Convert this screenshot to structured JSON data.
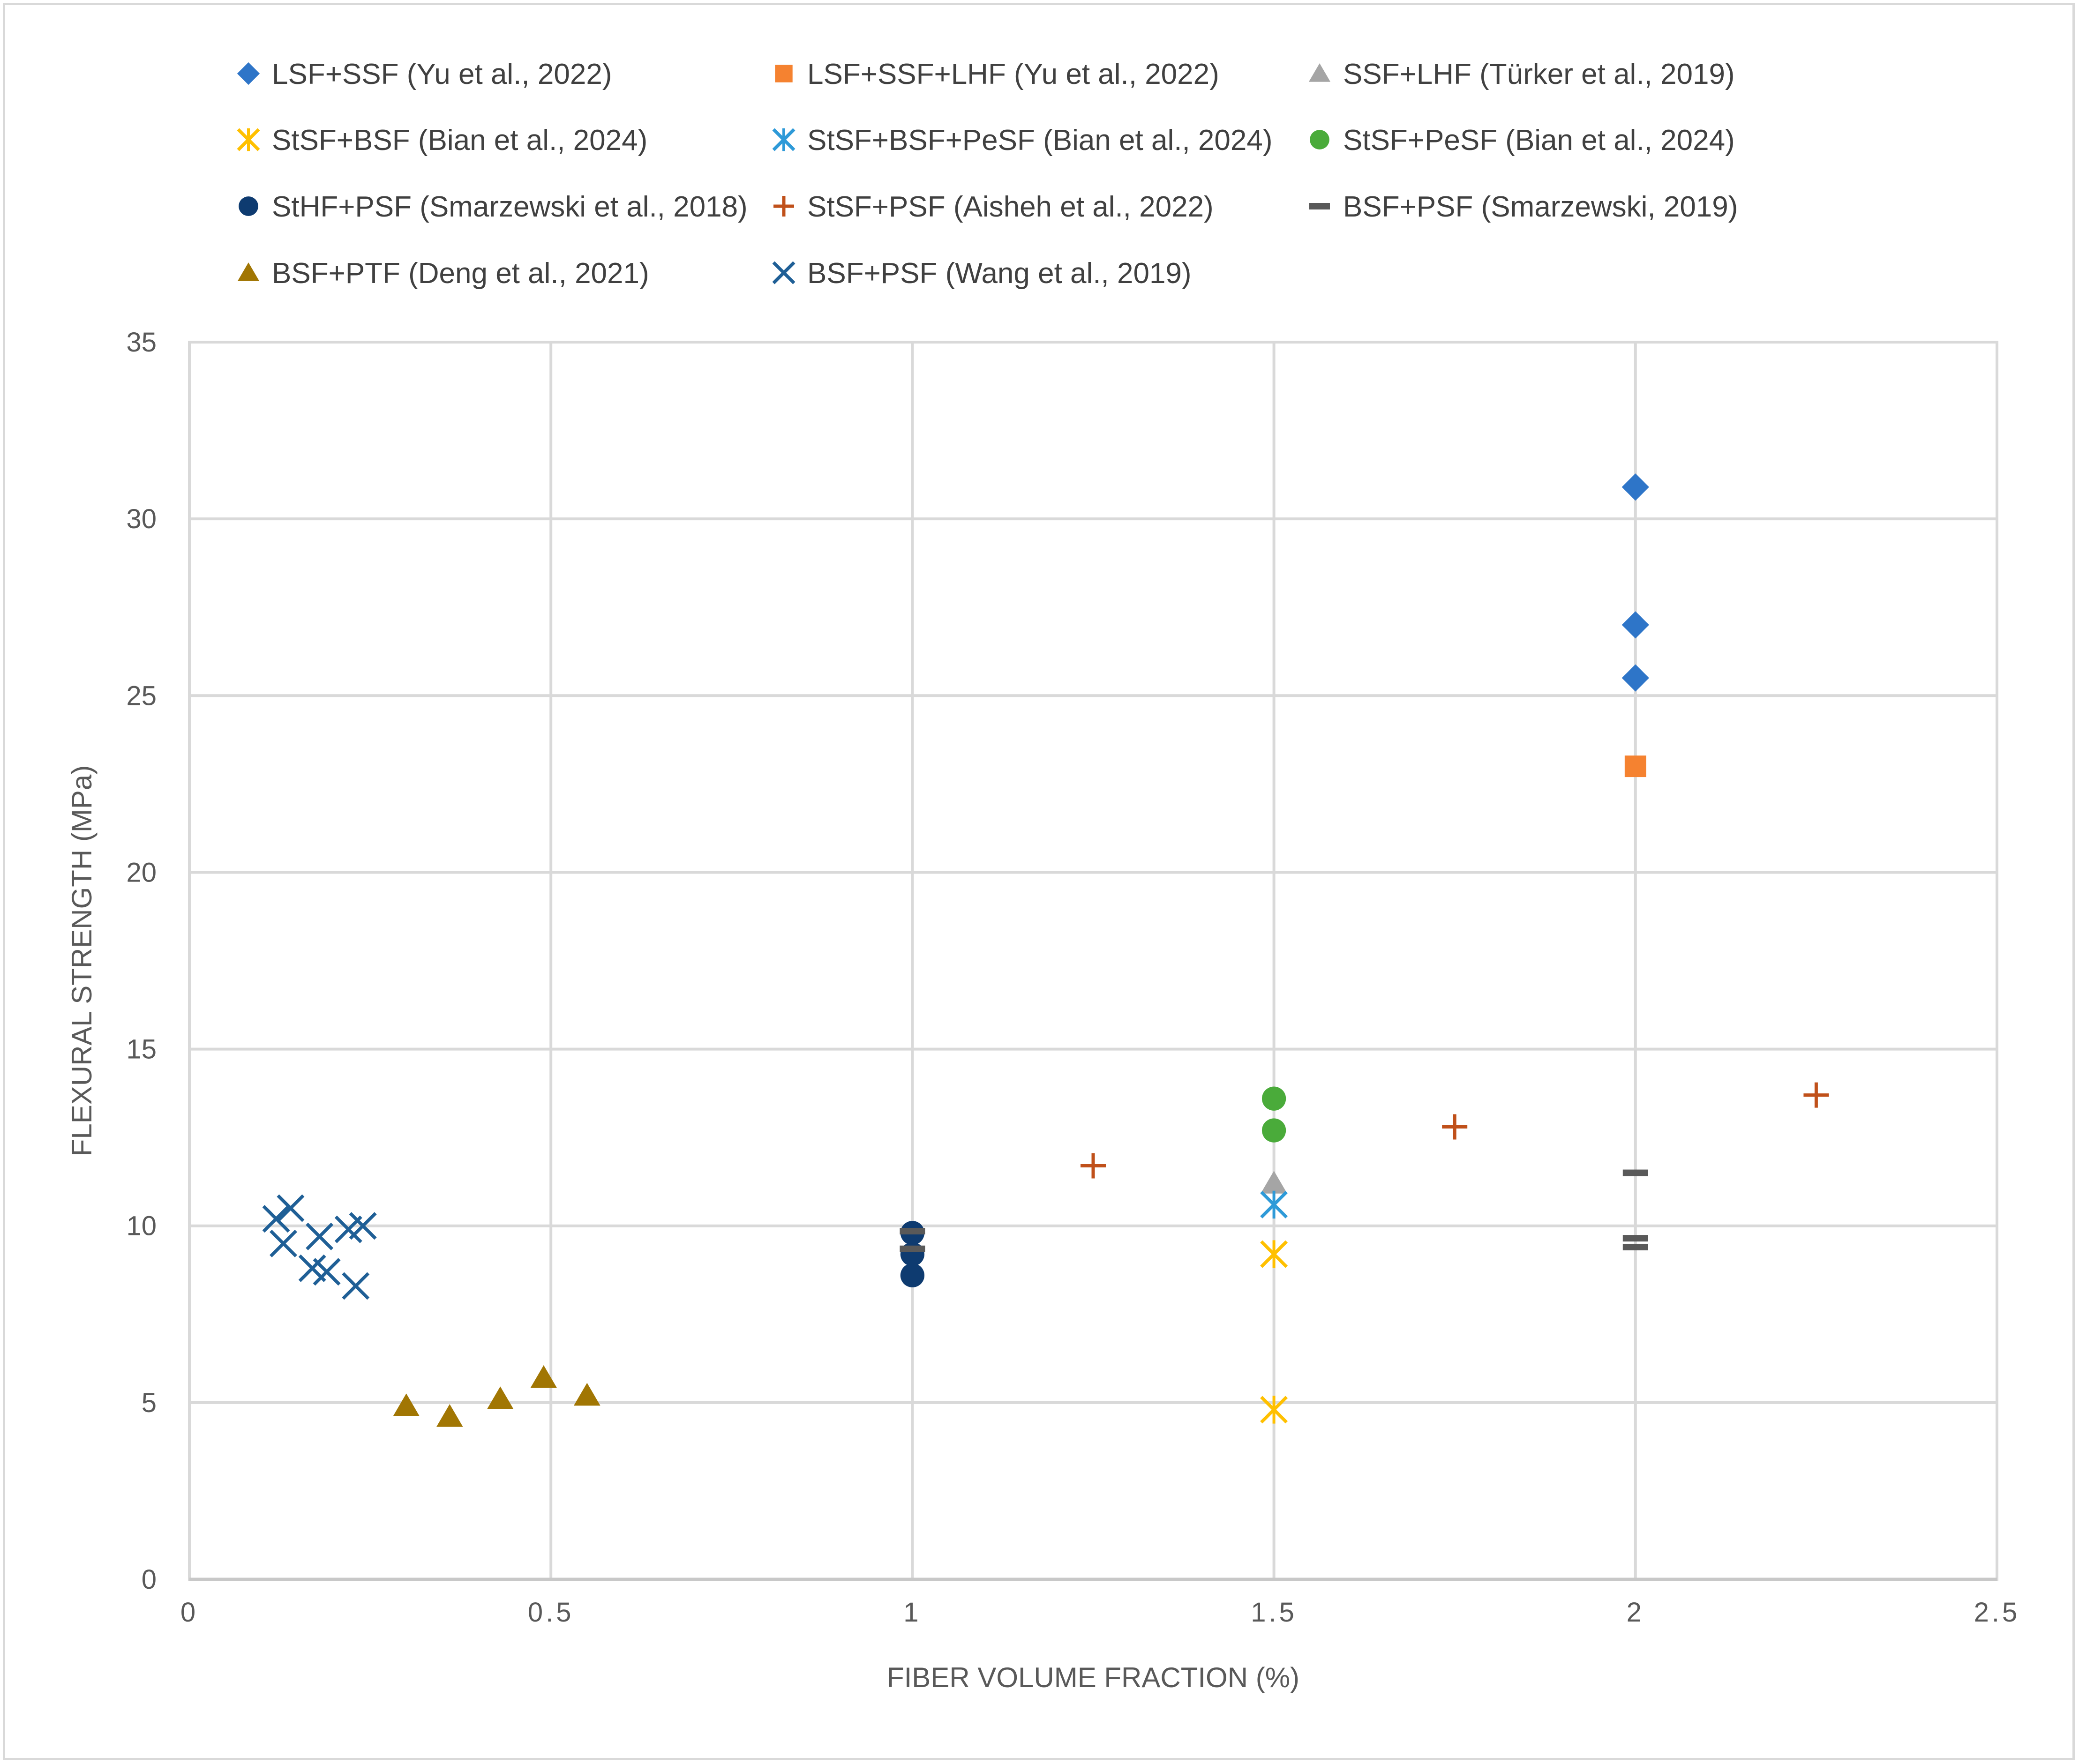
{
  "chart_data": {
    "type": "scatter",
    "title": "",
    "xlabel": "FIBER VOLUME FRACTION (%)",
    "ylabel": "FLEXURAL STRENGTH (MPa)",
    "xlim": [
      0,
      2.5
    ],
    "ylim": [
      0,
      35
    ],
    "x_ticks": [
      0,
      0.5,
      1,
      1.5,
      2,
      2.5
    ],
    "x_tick_labels": [
      "0",
      "0.5",
      "1",
      "1.5",
      "2",
      "2.5"
    ],
    "y_ticks": [
      0,
      5,
      10,
      15,
      20,
      25,
      30,
      35
    ],
    "y_tick_labels": [
      "0",
      "5",
      "10",
      "15",
      "20",
      "25",
      "30",
      "35"
    ],
    "grid": true,
    "legend_position": "top",
    "series": [
      {
        "name": "LSF+SSF (Yu et al., 2022)",
        "marker": "diamond",
        "color": "#2e75c8",
        "points": [
          [
            2.0,
            30.9
          ],
          [
            2.0,
            27.0
          ],
          [
            2.0,
            25.5
          ]
        ]
      },
      {
        "name": "LSF+SSF+LHF (Yu et al., 2022)",
        "marker": "square",
        "color": "#f58230",
        "points": [
          [
            2.0,
            23.0
          ]
        ]
      },
      {
        "name": "SSF+LHF (Türker et al., 2019)",
        "marker": "triangle",
        "color": "#a5a5a5",
        "points": [
          [
            1.5,
            11.2
          ]
        ]
      },
      {
        "name": "StSF+BSF (Bian et al., 2024)",
        "marker": "asterisk",
        "color": "#ffc000",
        "points": [
          [
            1.5,
            9.2
          ],
          [
            1.5,
            4.8
          ]
        ]
      },
      {
        "name": "StSF+BSF+PeSF (Bian et al., 2024)",
        "marker": "asterisk",
        "color": "#2e9ad8",
        "points": [
          [
            1.5,
            10.6
          ]
        ]
      },
      {
        "name": "StSF+PeSF (Bian et al., 2024)",
        "marker": "circle",
        "color": "#4aab3a",
        "points": [
          [
            1.5,
            13.6
          ],
          [
            1.5,
            12.7
          ]
        ]
      },
      {
        "name": "StHF+PSF (Smarzewski et al., 2018)",
        "marker": "circle",
        "color": "#0e3b70",
        "points": [
          [
            1.0,
            9.8
          ],
          [
            1.0,
            9.2
          ],
          [
            1.0,
            8.6
          ]
        ]
      },
      {
        "name": "StSF+PSF (Aisheh et al., 2022)",
        "marker": "plus",
        "color": "#c0501a",
        "points": [
          [
            1.25,
            11.7
          ],
          [
            1.75,
            12.8
          ],
          [
            2.25,
            13.7
          ]
        ]
      },
      {
        "name": "BSF+PSF (Smarzewski, 2019)",
        "marker": "dash",
        "color": "#595959",
        "points": [
          [
            1.0,
            9.85
          ],
          [
            1.0,
            9.35
          ],
          [
            2.0,
            11.5
          ],
          [
            2.0,
            9.65
          ],
          [
            2.0,
            9.4
          ]
        ]
      },
      {
        "name": "BSF+PTF (Deng et al., 2021)",
        "marker": "triangle",
        "color": "#a17603",
        "points": [
          [
            0.3,
            4.9
          ],
          [
            0.36,
            4.6
          ],
          [
            0.43,
            5.1
          ],
          [
            0.49,
            5.7
          ],
          [
            0.55,
            5.2
          ]
        ]
      },
      {
        "name": "BSF+PSF (Wang et al., 2019)",
        "marker": "x",
        "color": "#1f5f96",
        "points": [
          [
            0.12,
            10.2
          ],
          [
            0.14,
            10.5
          ],
          [
            0.13,
            9.5
          ],
          [
            0.18,
            9.7
          ],
          [
            0.17,
            8.8
          ],
          [
            0.19,
            8.7
          ],
          [
            0.22,
            9.9
          ],
          [
            0.24,
            10.0
          ],
          [
            0.23,
            8.3
          ]
        ]
      }
    ]
  }
}
